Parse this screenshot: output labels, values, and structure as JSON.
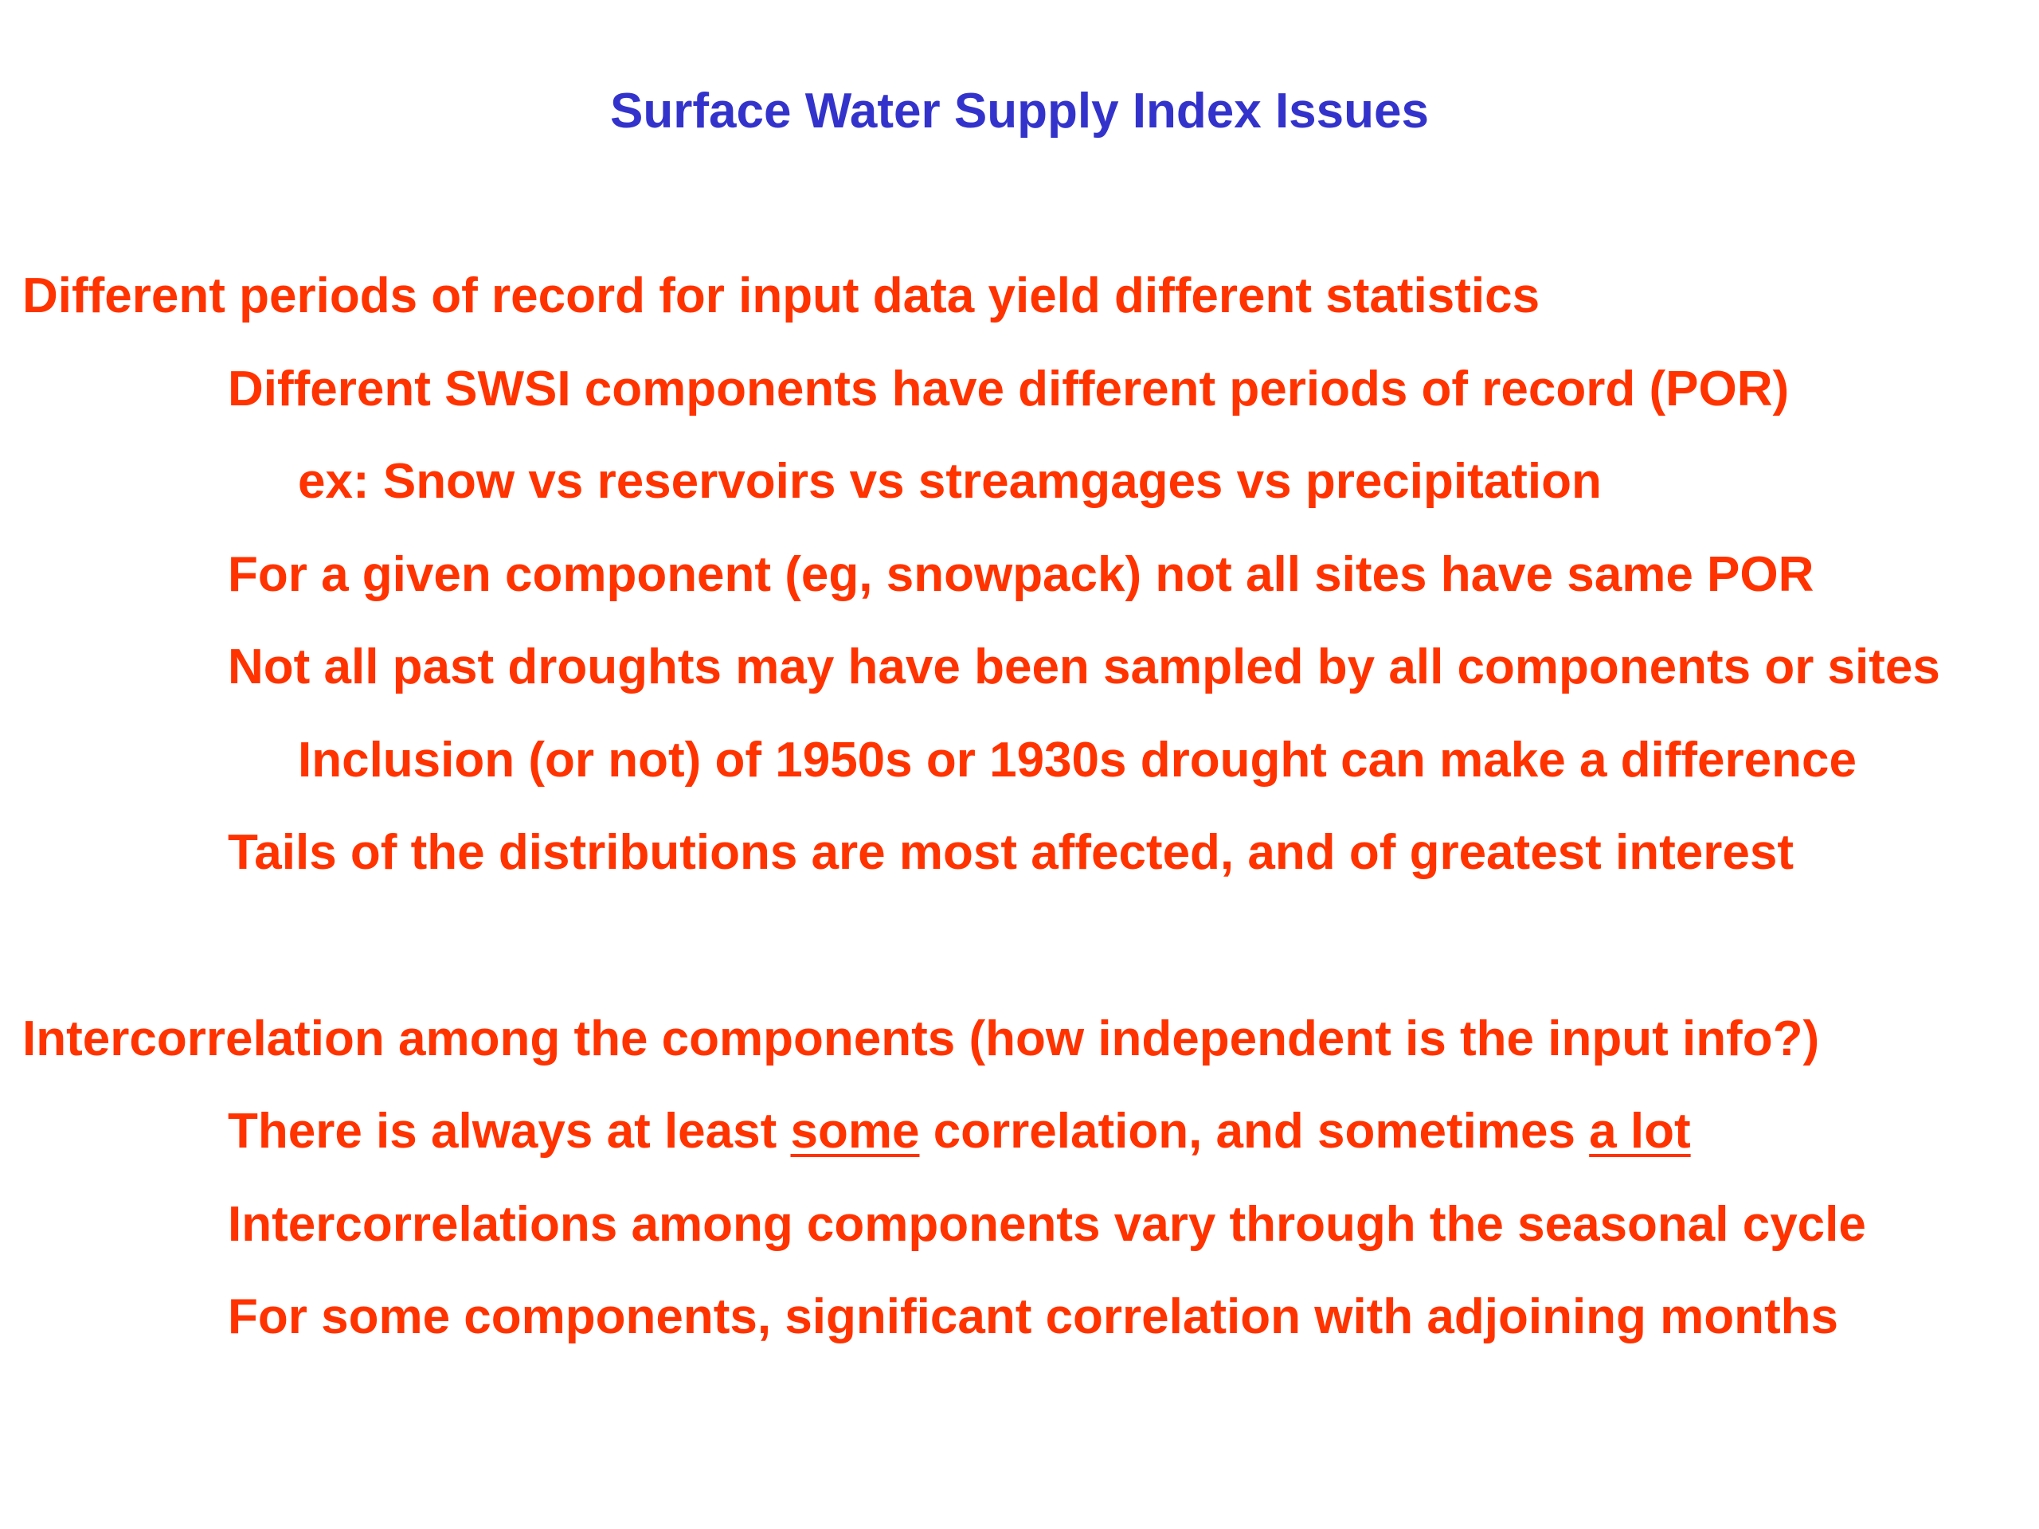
{
  "colors": {
    "title": "#3333cc",
    "text": "#ff3300"
  },
  "title": "Surface Water Supply Index Issues",
  "section1": {
    "heading": "Different periods of record for input data yield different statistics",
    "items": [
      "Different SWSI components have different periods of record (POR)",
      "ex:  Snow vs reservoirs vs streamgages vs precipitation",
      "For a given component (eg, snowpack) not all sites have same POR",
      "Not all past droughts may have been sampled by all components or sites",
      "Inclusion (or not) of 1950s or 1930s drought can make a difference",
      "Tails of the distributions are most affected, and of greatest interest"
    ]
  },
  "section2": {
    "heading": "Intercorrelation among the components (how independent is the input info?)",
    "line1": {
      "part1": "There is always at least ",
      "underline1": "some",
      "part2": " correlation, and sometimes ",
      "underline2": "a lot"
    },
    "items": [
      "Intercorrelations among components vary through the seasonal cycle",
      "For some components, significant correlation with adjoining months"
    ]
  }
}
